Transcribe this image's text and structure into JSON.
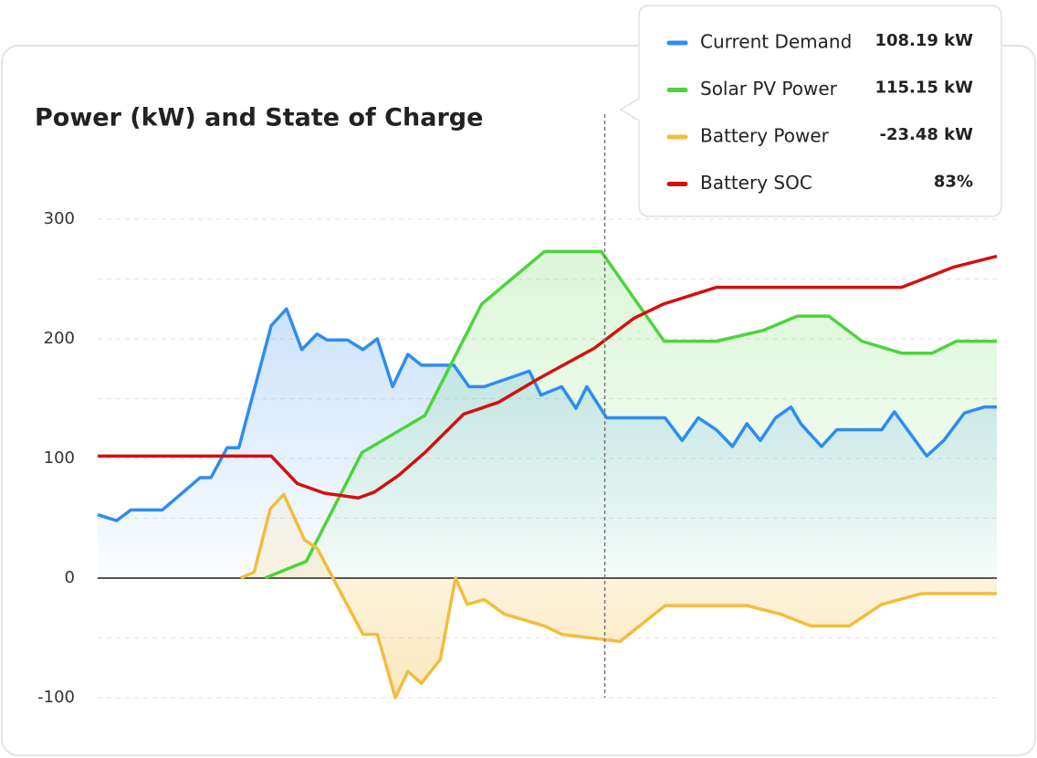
{
  "chart_data": {
    "type": "line",
    "title": "Power (kW) and State of Charge",
    "xlim": [
      0,
      100
    ],
    "ylim": [
      -100,
      300
    ],
    "yticks": [
      -100,
      0,
      100,
      200,
      300
    ],
    "yminor": [
      -50,
      50,
      150,
      250
    ],
    "grid": true,
    "cursor_x": 56.4,
    "series": [
      {
        "name": "Current Demand",
        "color": "#2f8cf0",
        "area": true,
        "x": [
          0,
          2.1,
          3.7,
          7.2,
          11.4,
          12.6,
          14.4,
          15.7,
          19.3,
          21.0,
          22.7,
          24.4,
          25.5,
          27.8,
          29.5,
          31.1,
          32.8,
          34.5,
          36.0,
          39.6,
          41.3,
          43.0,
          48.0,
          49.3,
          51.6,
          53.2,
          54.4,
          56.6,
          63.1,
          65.0,
          66.8,
          68.8,
          70.6,
          72.2,
          73.7,
          75.4,
          77.1,
          78.2,
          80.5,
          82.2,
          87.2,
          88.6,
          92.2,
          94.1,
          96.4,
          98.6,
          100
        ],
        "values": [
          53,
          48,
          57,
          57,
          84,
          84,
          109,
          109,
          211,
          225,
          191,
          204,
          199,
          199,
          191,
          200,
          160,
          187,
          178,
          178,
          160,
          160,
          173,
          153,
          160,
          142,
          160,
          134,
          134,
          115,
          134,
          124,
          110,
          129,
          115,
          134,
          143,
          129,
          110,
          124,
          124,
          139,
          102,
          115,
          138,
          143,
          143
        ]
      },
      {
        "name": "Solar PV Power",
        "color": "#4cd43c",
        "area": true,
        "x": [
          18.6,
          23.2,
          29.4,
          36.4,
          42.7,
          49.7,
          56.0,
          63.0,
          68.8,
          74.0,
          77.8,
          81.3,
          85.0,
          89.4,
          92.8,
          95.5,
          100
        ],
        "values": [
          0,
          14,
          105,
          136,
          229,
          273,
          273,
          198,
          198,
          207,
          219,
          219,
          198,
          188,
          188,
          198,
          198
        ]
      },
      {
        "name": "Battery Power",
        "color": "#f2bd3e",
        "area": true,
        "x": [
          15.9,
          17.4,
          19.2,
          20.7,
          23.0,
          24.4,
          29.5,
          31.1,
          33.1,
          34.5,
          36.0,
          38.1,
          39.8,
          41.1,
          43.0,
          45.2,
          49.7,
          51.6,
          58.1,
          63.1,
          72.2,
          75.9,
          79.3,
          83.6,
          87.2,
          91.6,
          100
        ],
        "values": [
          0,
          5,
          58,
          70,
          32,
          25,
          -47,
          -47,
          -100,
          -78,
          -88,
          -68,
          0,
          -22,
          -18,
          -30,
          -40,
          -47,
          -53,
          -23,
          -23,
          -30,
          -40,
          -40,
          -22,
          -13,
          -13
        ]
      },
      {
        "name": "Battery SOC",
        "color": "#d40f0f",
        "area": false,
        "x": [
          0,
          19.3,
          22.2,
          25.2,
          29.0,
          30.8,
          33.5,
          36.4,
          40.7,
          44.6,
          49.1,
          55.2,
          59.6,
          62.9,
          68.8,
          89.4,
          95.2,
          100
        ],
        "values": [
          102,
          102,
          79,
          71,
          67,
          72,
          86,
          105,
          137,
          147,
          167,
          192,
          217,
          229,
          243,
          243,
          260,
          269
        ]
      }
    ],
    "tooltip": [
      "108.19 kW",
      "115.15 kW",
      "-23.48 kW",
      "83%"
    ]
  }
}
